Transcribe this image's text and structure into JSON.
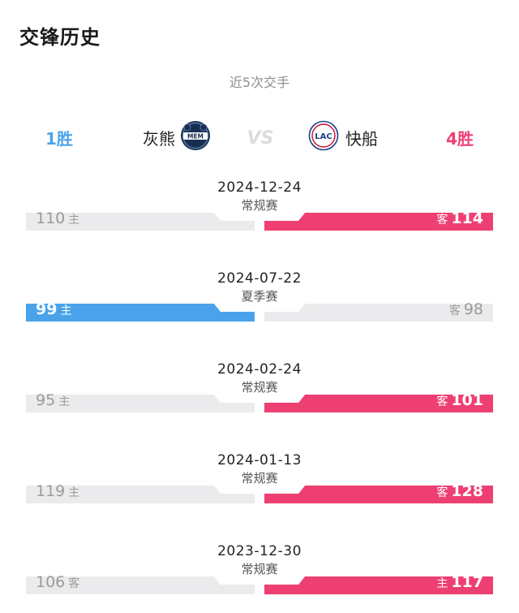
{
  "page": {
    "title": "交锋历史",
    "subtitle": "近5次交手"
  },
  "summary": {
    "left_wins": "1胜",
    "right_wins": "4胜",
    "left_team": "灰熊",
    "right_team": "快船",
    "left_logo_text": "MEM",
    "right_logo_text": "LAC",
    "vs_text": "VS"
  },
  "colors": {
    "left_win": "#4aa3ea",
    "right_win": "#ee3f73",
    "bar_bg": "#ebebed"
  },
  "games": [
    {
      "date": "2024-12-24",
      "type": "常规赛",
      "left_score": "110",
      "left_side": "主",
      "right_score": "114",
      "right_side": "客",
      "winner": "right"
    },
    {
      "date": "2024-07-22",
      "type": "夏季赛",
      "left_score": "99",
      "left_side": "主",
      "right_score": "98",
      "right_side": "客",
      "winner": "left"
    },
    {
      "date": "2024-02-24",
      "type": "常规赛",
      "left_score": "95",
      "left_side": "主",
      "right_score": "101",
      "right_side": "客",
      "winner": "right"
    },
    {
      "date": "2024-01-13",
      "type": "常规赛",
      "left_score": "119",
      "left_side": "主",
      "right_score": "128",
      "right_side": "客",
      "winner": "right"
    },
    {
      "date": "2023-12-30",
      "type": "常规赛",
      "left_score": "106",
      "left_side": "客",
      "right_score": "117",
      "right_side": "主",
      "winner": "right"
    }
  ]
}
